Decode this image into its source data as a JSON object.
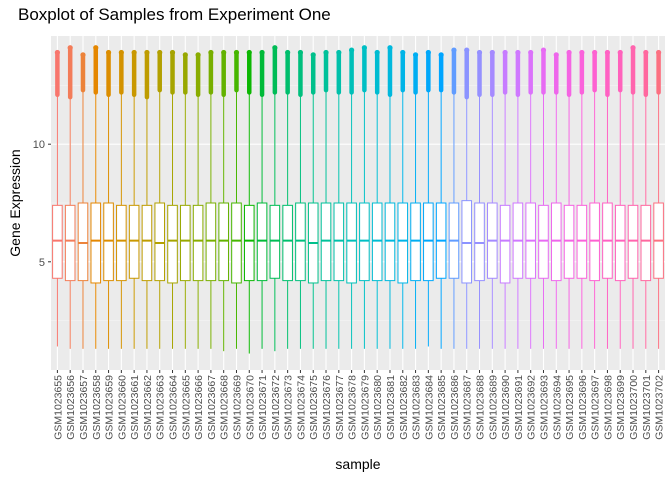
{
  "chart_data": {
    "type": "boxplot",
    "title": "Boxplot of Samples from Experiment One",
    "xlabel": "sample",
    "ylabel": "Gene Expression",
    "ylim": [
      0.4,
      14.6
    ],
    "yticks": [
      5,
      10
    ],
    "grid": true,
    "legend": "none",
    "panel_color": "#EBEBEB",
    "categories": [
      "GSM1023655",
      "GSM1023656",
      "GSM1023657",
      "GSM1023658",
      "GSM1023659",
      "GSM1023660",
      "GSM1023661",
      "GSM1023662",
      "GSM1023663",
      "GSM1023664",
      "GSM1023665",
      "GSM1023666",
      "GSM1023667",
      "GSM1023668",
      "GSM1023669",
      "GSM1023670",
      "GSM1023671",
      "GSM1023672",
      "GSM1023673",
      "GSM1023674",
      "GSM1023675",
      "GSM1023676",
      "GSM1023677",
      "GSM1023678",
      "GSM1023679",
      "GSM1023680",
      "GSM1023681",
      "GSM1023682",
      "GSM1023683",
      "GSM1023684",
      "GSM1023685",
      "GSM1023686",
      "GSM1023687",
      "GSM1023688",
      "GSM1023689",
      "GSM1023690",
      "GSM1023691",
      "GSM1023692",
      "GSM1023693",
      "GSM1023694",
      "GSM1023695",
      "GSM1023696",
      "GSM1023697",
      "GSM1023698",
      "GSM1023699",
      "GSM1023700",
      "GSM1023701",
      "GSM1023702"
    ],
    "colors": [
      "#F8766D",
      "#F37C59",
      "#EC8239",
      "#E58700",
      "#DC8D00",
      "#D39200",
      "#C99800",
      "#BE9C00",
      "#B3A000",
      "#A6A400",
      "#98A800",
      "#89AC00",
      "#78AF00",
      "#63B200",
      "#46B600",
      "#0CB702",
      "#00BA38",
      "#00BC56",
      "#00BE6C",
      "#00BF7D",
      "#00C08B",
      "#00C19A",
      "#00C0AA",
      "#00BFB8",
      "#00BFC4",
      "#00BCD1",
      "#00B8DD",
      "#00B4E7",
      "#00AEF2",
      "#00A7FA",
      "#00A5FF",
      "#619CFF",
      "#8B93FF",
      "#9590FF",
      "#A58AFF",
      "#C77CFF",
      "#CF78FF",
      "#DB72FB",
      "#E76BF3",
      "#EE67EB",
      "#F564E3",
      "#FA62DB",
      "#FD61D1",
      "#FF61C3",
      "#FF62BC",
      "#FF65AE",
      "#FF689F",
      "#FC7081"
    ],
    "stats": {
      "whisker_low": [
        1.4,
        1.3,
        1.3,
        1.3,
        1.3,
        1.3,
        1.3,
        1.3,
        1.3,
        1.3,
        1.3,
        1.3,
        1.3,
        1.2,
        1.3,
        1.1,
        1.3,
        1.2,
        1.3,
        1.3,
        1.3,
        1.3,
        1.3,
        1.3,
        1.3,
        1.3,
        1.3,
        1.3,
        1.3,
        1.4,
        1.3,
        1.3,
        1.3,
        1.3,
        1.3,
        1.3,
        1.3,
        1.3,
        1.3,
        1.3,
        1.3,
        1.3,
        1.3,
        1.3,
        1.3,
        1.3,
        1.3,
        1.3
      ],
      "q1": [
        4.3,
        4.2,
        4.2,
        4.1,
        4.2,
        4.2,
        4.3,
        4.2,
        4.2,
        4.1,
        4.2,
        4.2,
        4.2,
        4.2,
        4.1,
        4.2,
        4.2,
        4.3,
        4.2,
        4.2,
        4.1,
        4.2,
        4.2,
        4.1,
        4.2,
        4.2,
        4.2,
        4.1,
        4.2,
        4.2,
        4.3,
        4.3,
        4.1,
        4.2,
        4.3,
        4.1,
        4.3,
        4.3,
        4.3,
        4.2,
        4.3,
        4.3,
        4.2,
        4.3,
        4.2,
        4.3,
        4.2,
        4.3
      ],
      "median": [
        5.9,
        5.9,
        5.8,
        5.9,
        5.9,
        5.9,
        5.9,
        5.9,
        5.8,
        5.9,
        5.9,
        5.9,
        5.9,
        5.9,
        5.9,
        5.9,
        5.9,
        5.9,
        5.9,
        5.9,
        5.8,
        5.9,
        5.9,
        5.9,
        5.9,
        5.9,
        5.9,
        5.9,
        5.9,
        5.9,
        5.9,
        5.9,
        5.8,
        5.8,
        5.9,
        5.9,
        5.9,
        5.9,
        5.9,
        5.9,
        5.9,
        5.9,
        5.9,
        5.9,
        5.9,
        5.9,
        5.9,
        5.9
      ],
      "q3": [
        7.4,
        7.4,
        7.5,
        7.5,
        7.5,
        7.4,
        7.4,
        7.4,
        7.5,
        7.4,
        7.4,
        7.4,
        7.5,
        7.5,
        7.5,
        7.4,
        7.5,
        7.4,
        7.4,
        7.5,
        7.5,
        7.5,
        7.5,
        7.5,
        7.5,
        7.5,
        7.5,
        7.5,
        7.5,
        7.5,
        7.5,
        7.5,
        7.6,
        7.5,
        7.5,
        7.4,
        7.5,
        7.5,
        7.4,
        7.5,
        7.4,
        7.4,
        7.5,
        7.5,
        7.4,
        7.4,
        7.4,
        7.5
      ],
      "whisker_high": [
        12.1,
        12.0,
        12.3,
        12.2,
        12.1,
        12.2,
        12.1,
        12.0,
        12.3,
        12.2,
        12.2,
        12.1,
        12.2,
        12.1,
        12.3,
        12.2,
        12.1,
        12.2,
        12.2,
        12.1,
        12.2,
        12.3,
        12.2,
        12.2,
        12.3,
        12.2,
        12.1,
        12.3,
        12.2,
        12.3,
        12.3,
        12.2,
        12.0,
        12.1,
        12.1,
        12.2,
        12.1,
        12.2,
        12.2,
        12.2,
        12.1,
        12.2,
        12.3,
        12.1,
        12.3,
        12.2,
        12.1,
        12.2
      ],
      "outlier_max": [
        13.9,
        14.1,
        13.8,
        14.1,
        13.9,
        13.9,
        13.9,
        13.9,
        13.9,
        13.9,
        13.8,
        13.8,
        13.9,
        13.9,
        13.9,
        13.9,
        13.9,
        14.1,
        13.9,
        13.9,
        13.8,
        13.9,
        13.9,
        14.0,
        14.1,
        13.9,
        14.1,
        13.9,
        13.8,
        13.9,
        13.8,
        14.0,
        14.0,
        13.9,
        13.9,
        13.9,
        13.9,
        13.9,
        14.0,
        13.8,
        13.9,
        13.9,
        13.9,
        13.9,
        13.9,
        14.1,
        13.9,
        13.9
      ]
    }
  }
}
